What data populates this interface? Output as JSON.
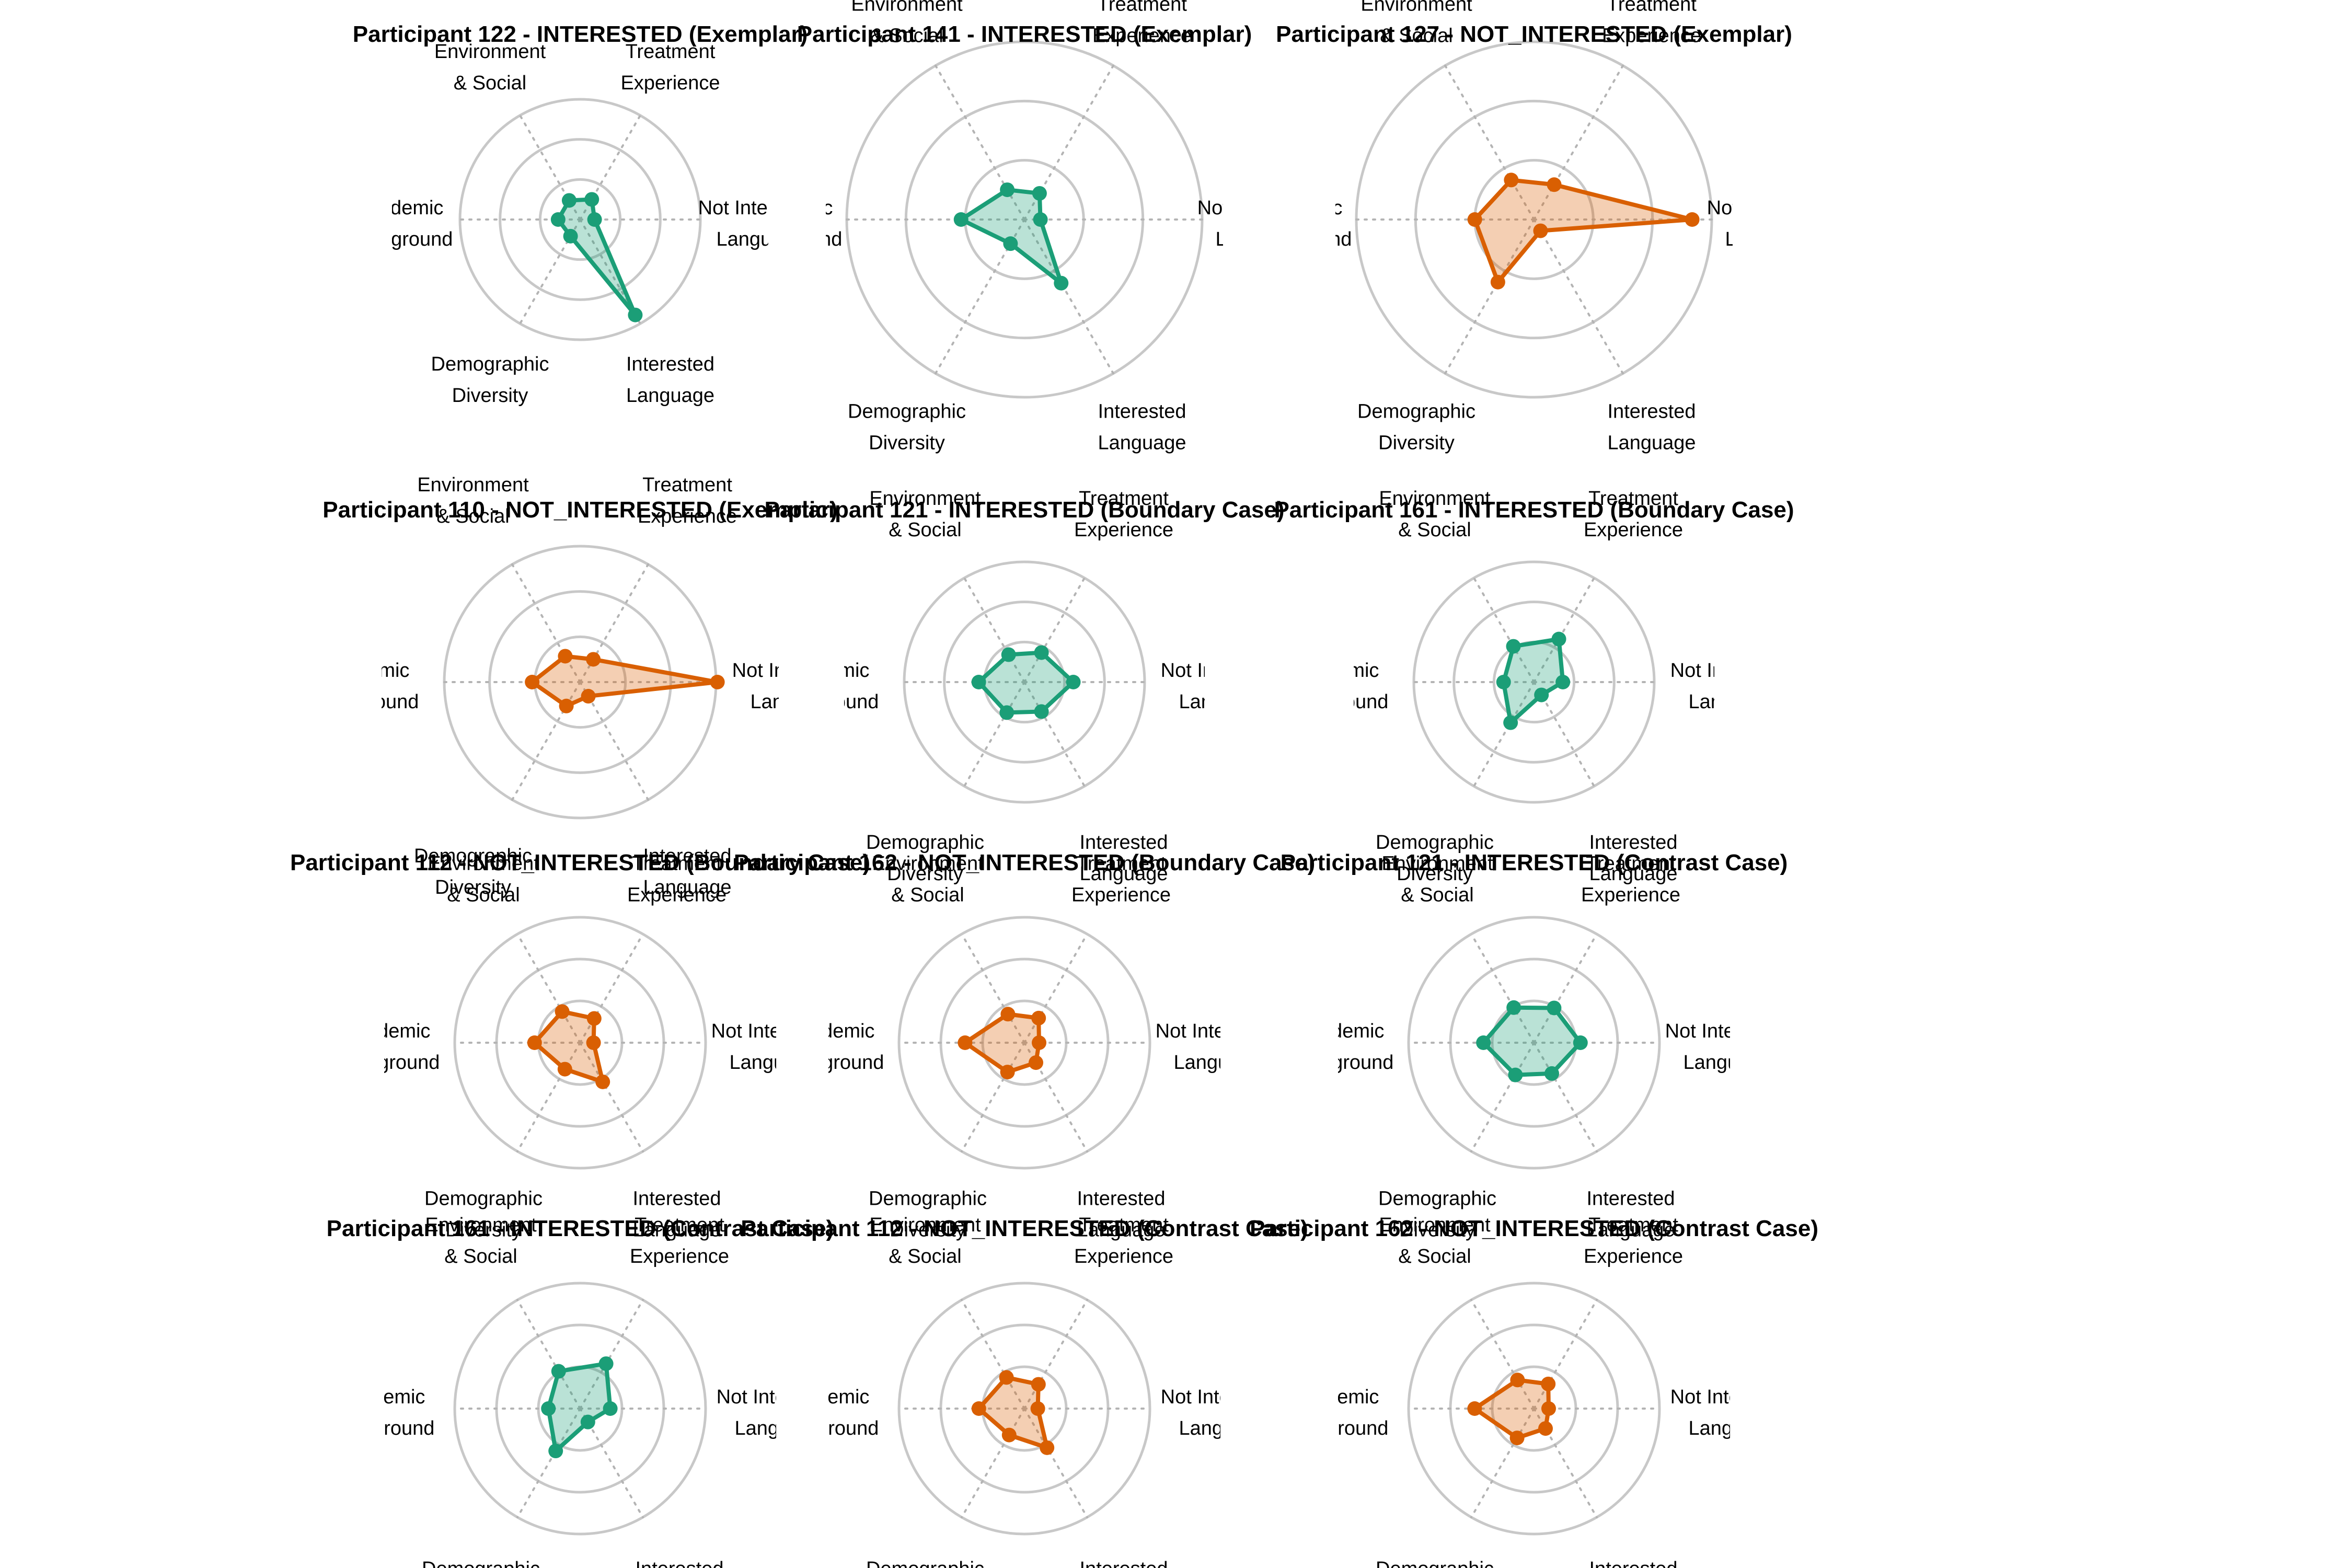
{
  "colors": {
    "interested": "#1b9e77",
    "not_interested": "#d95f02"
  },
  "axes": [
    {
      "id": "env",
      "lines": [
        "Environment",
        "& Social"
      ]
    },
    {
      "id": "treat",
      "lines": [
        "Treatment",
        "Experience"
      ]
    },
    {
      "id": "notint",
      "lines": [
        "Not Interested",
        "Language"
      ]
    },
    {
      "id": "intlang",
      "lines": [
        "Interested",
        "Language"
      ]
    },
    {
      "id": "demo",
      "lines": [
        "Demographic",
        "Diversity"
      ]
    },
    {
      "id": "acad",
      "lines": [
        "Academic",
        "Background"
      ]
    }
  ],
  "chart_data": [
    {
      "type": "radar",
      "title": "Participant 122 - INTERESTED (Exemplar)",
      "class": "INTERESTED",
      "axes_order": [
        "Environment & Social",
        "Treatment Experience",
        "Not Interested Language",
        "Interested Language",
        "Demographic Diversity",
        "Academic Background"
      ],
      "values": [
        0.55,
        0.58,
        0.36,
        2.75,
        0.48,
        0.55
      ]
    },
    {
      "type": "radar",
      "title": "Participant 141 - INTERESTED (Exemplar)",
      "class": "INTERESTED",
      "axes_order": [
        "Environment & Social",
        "Treatment Experience",
        "Not Interested Language",
        "Interested Language",
        "Demographic Diversity",
        "Academic Background"
      ],
      "values": [
        0.58,
        0.51,
        0.27,
        1.24,
        0.47,
        1.07
      ]
    },
    {
      "type": "radar",
      "title": "Participant 127 - NOT_INTERESTED (Exemplar)",
      "class": "NOT_INTERESTED",
      "axes_order": [
        "Environment & Social",
        "Treatment Experience",
        "Not Interested Language",
        "Interested Language",
        "Demographic Diversity",
        "Academic Background"
      ],
      "values": [
        0.77,
        0.68,
        2.67,
        0.22,
        1.22,
        1.0
      ]
    },
    {
      "type": "radar",
      "title": "Participant 110 - NOT_INTERESTED (Exemplar)",
      "class": "NOT_INTERESTED",
      "axes_order": [
        "Environment & Social",
        "Treatment Experience",
        "Not Interested Language",
        "Interested Language",
        "Demographic Diversity",
        "Academic Background"
      ],
      "values": [
        0.66,
        0.58,
        3.03,
        0.36,
        0.61,
        1.06
      ]
    },
    {
      "type": "radar",
      "title": "Participant 121 - INTERESTED (Boundary Case)",
      "class": "INTERESTED",
      "axes_order": [
        "Environment & Social",
        "Treatment Experience",
        "Not Interested Language",
        "Interested Language",
        "Demographic Diversity",
        "Academic Background"
      ],
      "values": [
        0.79,
        0.85,
        1.22,
        0.85,
        0.88,
        1.14
      ]
    },
    {
      "type": "radar",
      "title": "Participant 161 - INTERESTED (Boundary Case)",
      "class": "INTERESTED",
      "axes_order": [
        "Environment & Social",
        "Treatment Experience",
        "Not Interested Language",
        "Interested Language",
        "Demographic Diversity",
        "Academic Background"
      ],
      "values": [
        1.03,
        1.24,
        0.72,
        0.37,
        1.17,
        0.76
      ]
    },
    {
      "type": "radar",
      "title": "Participant 112 - NOT_INTERESTED (Boundary Case)",
      "class": "NOT_INTERESTED",
      "axes_order": [
        "Environment & Social",
        "Treatment Experience",
        "Not Interested Language",
        "Interested Language",
        "Demographic Diversity",
        "Academic Background"
      ],
      "values": [
        0.86,
        0.67,
        0.32,
        1.08,
        0.73,
        1.09
      ]
    },
    {
      "type": "radar",
      "title": "Participant 162 - NOT_INTERESTED (Boundary Case)",
      "class": "NOT_INTERESTED",
      "axes_order": [
        "Environment & Social",
        "Treatment Experience",
        "Not Interested Language",
        "Interested Language",
        "Demographic Diversity",
        "Academic Background"
      ],
      "values": [
        0.79,
        0.68,
        0.35,
        0.55,
        0.81,
        1.42
      ]
    },
    {
      "type": "radar",
      "title": "Participant 121 - INTERESTED (Contrast Case)",
      "class": "INTERESTED",
      "axes_order": [
        "Environment & Social",
        "Treatment Experience",
        "Not Interested Language",
        "Interested Language",
        "Demographic Diversity",
        "Academic Background"
      ],
      "values": [
        0.97,
        0.96,
        1.11,
        0.85,
        0.89,
        1.21
      ]
    },
    {
      "type": "radar",
      "title": "Participant 161 - INTERESTED (Contrast Case)",
      "class": "INTERESTED",
      "axes_order": [
        "Environment & Social",
        "Treatment Experience",
        "Not Interested Language",
        "Interested Language",
        "Demographic Diversity",
        "Academic Background"
      ],
      "values": [
        1.03,
        1.24,
        0.72,
        0.37,
        1.17,
        0.76
      ]
    },
    {
      "type": "radar",
      "title": "Participant 112 - NOT_INTERESTED (Contrast Case)",
      "class": "NOT_INTERESTED",
      "axes_order": [
        "Environment & Social",
        "Treatment Experience",
        "Not Interested Language",
        "Interested Language",
        "Demographic Diversity",
        "Academic Background"
      ],
      "values": [
        0.86,
        0.67,
        0.32,
        1.08,
        0.73,
        1.09
      ]
    },
    {
      "type": "radar",
      "title": "Participant 162 - NOT_INTERESTED (Contrast Case)",
      "class": "NOT_INTERESTED",
      "axes_order": [
        "Environment & Social",
        "Treatment Experience",
        "Not Interested Language",
        "Interested Language",
        "Demographic Diversity",
        "Academic Background"
      ],
      "values": [
        0.79,
        0.68,
        0.35,
        0.55,
        0.81,
        1.42
      ]
    }
  ]
}
